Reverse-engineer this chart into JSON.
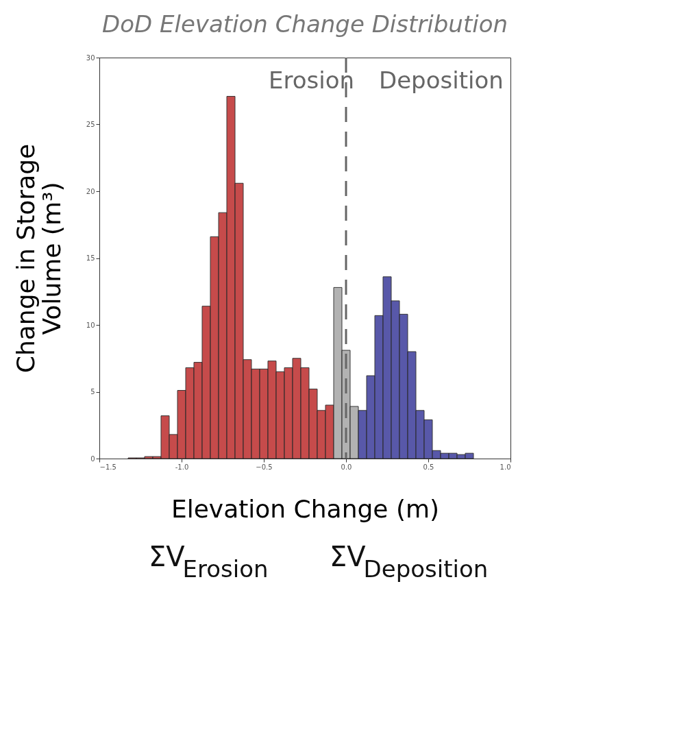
{
  "chart_data": {
    "type": "histogram",
    "title": "DoD Elevation Change Distribution",
    "xlabel": "Elevation Change (m)",
    "ylabel": "Change in Storage Volume (m³)",
    "bins": [
      -1.325,
      -1.275,
      -1.225,
      -1.175,
      -1.125,
      -1.075,
      -1.025,
      -0.975,
      -0.925,
      -0.875,
      -0.825,
      -0.775,
      -0.725,
      -0.675,
      -0.625,
      -0.575,
      -0.525,
      -0.475,
      -0.425,
      -0.375,
      -0.325,
      -0.275,
      -0.225,
      -0.175,
      -0.125,
      -0.075,
      -0.025,
      0.025,
      0.075,
      0.125,
      0.175,
      0.225,
      0.275,
      0.325,
      0.375,
      0.425,
      0.475,
      0.525,
      0.575,
      0.625,
      0.675,
      0.725,
      0.775
    ],
    "values": [
      0.05,
      0.05,
      0.15,
      0.15,
      3.2,
      1.8,
      5.1,
      6.8,
      7.2,
      11.4,
      16.6,
      18.4,
      27.1,
      20.6,
      7.4,
      6.7,
      6.7,
      7.3,
      6.5,
      6.8,
      7.5,
      6.8,
      5.2,
      3.6,
      4.0,
      12.8,
      8.1,
      3.9,
      3.6,
      6.2,
      10.7,
      13.6,
      11.8,
      10.8,
      8.0,
      3.6,
      2.9,
      0.6,
      0.4,
      0.4,
      0.3,
      0.4
    ],
    "colors": [
      "#c03838",
      "#c03838",
      "#c03838",
      "#c03838",
      "#c03838",
      "#c03838",
      "#c03838",
      "#c03838",
      "#c03838",
      "#c03838",
      "#c03838",
      "#c03838",
      "#c03838",
      "#c03838",
      "#c03838",
      "#c03838",
      "#c03838",
      "#c03838",
      "#c03838",
      "#c03838",
      "#c03838",
      "#c03838",
      "#c03838",
      "#c03838",
      "#c03838",
      "#aaaaaa",
      "#aaaaaa",
      "#aaaaaa",
      "#4646a0",
      "#4646a0",
      "#4646a0",
      "#4646a0",
      "#4646a0",
      "#4646a0",
      "#4646a0",
      "#4646a0",
      "#4646a0",
      "#4646a0",
      "#4646a0",
      "#4646a0",
      "#4646a0",
      "#4646a0"
    ],
    "xlim": [
      -1.5,
      1.0
    ],
    "xticks": [
      -1.5,
      {
        "value": -1.0,
        "label": "-1.0"
      },
      -0.5,
      {
        "value": 0.0,
        "label": "0.0"
      },
      0.5,
      {
        "value": 1.0,
        "label": "1.0"
      }
    ],
    "ylim": [
      0,
      30
    ],
    "yticks": [
      0,
      5,
      10,
      15,
      20,
      25,
      30
    ],
    "grid": false,
    "ref_lines": [
      {
        "axis": "x",
        "value": 0.0,
        "color": "#666666",
        "line_style": "dashed"
      }
    ],
    "annotations": [
      "Erosion",
      "Deposition",
      "ΣV$_{Erosion}$",
      "ΣV$_{Deposition}$"
    ]
  }
}
